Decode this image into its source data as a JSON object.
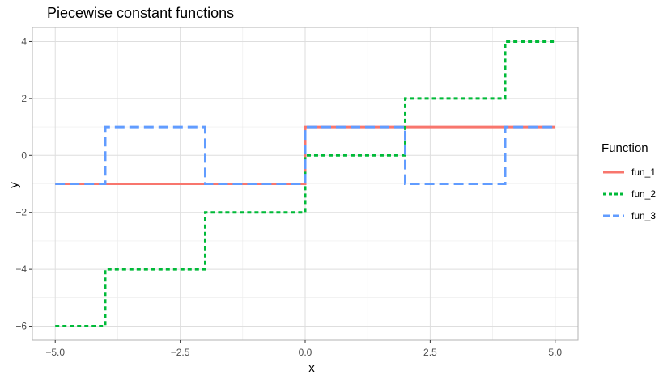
{
  "chart_data": {
    "type": "line",
    "title": "Piecewise constant functions",
    "xlabel": "x",
    "ylabel": "y",
    "xlim": [
      -5,
      5
    ],
    "ylim": [
      -6,
      4
    ],
    "x_ticks": [
      -5.0,
      -2.5,
      0.0,
      2.5,
      5.0
    ],
    "x_tick_labels": [
      "−5.0",
      "−2.5",
      "0.0",
      "2.5",
      "5.0"
    ],
    "y_ticks": [
      -6,
      -4,
      -2,
      0,
      2,
      4
    ],
    "y_tick_labels": [
      "−6",
      "−4",
      "−2",
      "0",
      "2",
      "4"
    ],
    "grid": true,
    "legend": {
      "title": "Function",
      "placement": "right"
    },
    "series": [
      {
        "name": "fun_1",
        "color": "#F8766D",
        "linestyle": "solid",
        "x": [
          -5,
          0,
          0,
          5
        ],
        "y": [
          -1,
          -1,
          1,
          1
        ]
      },
      {
        "name": "fun_2",
        "color": "#00BA38",
        "linestyle": "dotted",
        "x": [
          -5,
          -4,
          -4,
          -2,
          -2,
          0,
          0,
          2,
          2,
          4,
          4,
          5
        ],
        "y": [
          -6,
          -6,
          -4,
          -4,
          -2,
          -2,
          0,
          0,
          2,
          2,
          4,
          4
        ]
      },
      {
        "name": "fun_3",
        "color": "#619CFF",
        "linestyle": "dashed",
        "x": [
          -5,
          -4,
          -4,
          -2,
          -2,
          0,
          0,
          2,
          2,
          4,
          4,
          5
        ],
        "y": [
          -1,
          -1,
          1,
          1,
          -1,
          -1,
          1,
          1,
          -1,
          -1,
          1,
          1
        ]
      }
    ]
  }
}
